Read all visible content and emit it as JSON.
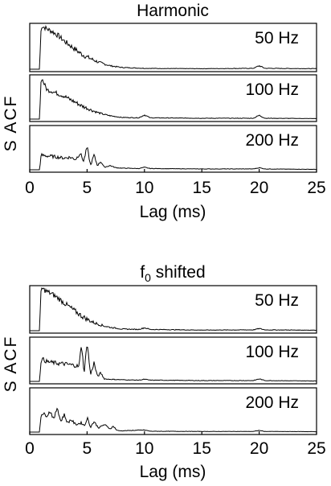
{
  "chart_data": [
    {
      "type": "line",
      "title": "Harmonic",
      "ylabel": "S ACF",
      "xlabel": "Lag (ms)",
      "xlim": [
        0,
        25
      ],
      "x_ticks": [
        "0",
        "5",
        "10",
        "15",
        "20",
        "25"
      ],
      "panels": [
        {
          "label": "50 Hz",
          "points": [
            [
              0.85,
              0.0
            ],
            [
              1.0,
              1.0
            ],
            [
              1.5,
              0.93
            ],
            [
              2.0,
              0.86
            ],
            [
              2.5,
              0.77
            ],
            [
              3.0,
              0.65
            ],
            [
              3.5,
              0.55
            ],
            [
              4.0,
              0.45
            ],
            [
              4.5,
              0.35
            ],
            [
              5.0,
              0.28
            ],
            [
              5.5,
              0.22
            ],
            [
              6.0,
              0.16
            ],
            [
              6.5,
              0.12
            ],
            [
              7.0,
              0.08
            ],
            [
              7.5,
              0.06
            ],
            [
              8.0,
              0.04
            ],
            [
              9.0,
              0.03
            ],
            [
              10.0,
              0.02
            ],
            [
              12.0,
              0.015
            ],
            [
              15.0,
              0.012
            ],
            [
              19.5,
              0.02
            ],
            [
              20.0,
              0.08
            ],
            [
              20.5,
              0.02
            ],
            [
              25.0,
              0.012
            ]
          ],
          "noise": 0.06
        },
        {
          "label": "100 Hz",
          "points": [
            [
              0.85,
              0.0
            ],
            [
              1.0,
              1.0
            ],
            [
              1.5,
              0.7
            ],
            [
              2.0,
              0.66
            ],
            [
              2.5,
              0.6
            ],
            [
              3.0,
              0.55
            ],
            [
              3.5,
              0.47
            ],
            [
              4.0,
              0.4
            ],
            [
              4.5,
              0.32
            ],
            [
              5.0,
              0.26
            ],
            [
              5.5,
              0.2
            ],
            [
              6.0,
              0.15
            ],
            [
              6.5,
              0.11
            ],
            [
              7.0,
              0.08
            ],
            [
              7.5,
              0.06
            ],
            [
              8.0,
              0.04
            ],
            [
              9.5,
              0.03
            ],
            [
              10.0,
              0.1
            ],
            [
              10.5,
              0.03
            ],
            [
              15.0,
              0.02
            ],
            [
              19.5,
              0.02
            ],
            [
              20.0,
              0.09
            ],
            [
              20.5,
              0.02
            ],
            [
              25.0,
              0.012
            ]
          ],
          "noise": 0.05
        },
        {
          "label": "200 Hz",
          "points": [
            [
              0.85,
              0.0
            ],
            [
              1.0,
              0.35
            ],
            [
              1.5,
              0.33
            ],
            [
              2.0,
              0.32
            ],
            [
              2.5,
              0.3
            ],
            [
              3.0,
              0.28
            ],
            [
              3.5,
              0.3
            ],
            [
              4.0,
              0.25
            ],
            [
              4.4,
              0.4
            ],
            [
              4.7,
              0.2
            ],
            [
              5.0,
              0.55
            ],
            [
              5.3,
              0.1
            ],
            [
              5.6,
              0.35
            ],
            [
              5.9,
              0.1
            ],
            [
              6.2,
              0.2
            ],
            [
              6.5,
              0.06
            ],
            [
              7.0,
              0.1
            ],
            [
              7.5,
              0.05
            ],
            [
              8.0,
              0.04
            ],
            [
              9.5,
              0.03
            ],
            [
              10.0,
              0.06
            ],
            [
              10.5,
              0.03
            ],
            [
              15.0,
              0.02
            ],
            [
              19.5,
              0.02
            ],
            [
              20.0,
              0.05
            ],
            [
              20.5,
              0.02
            ],
            [
              25.0,
              0.01
            ]
          ],
          "noise": 0.04
        }
      ]
    },
    {
      "type": "line",
      "title": "f0 shifted",
      "title_main": "f",
      "title_sub": "0",
      "title_rest": " shifted",
      "ylabel": "S ACF",
      "xlabel": "Lag (ms)",
      "xlim": [
        0,
        25
      ],
      "x_ticks": [
        "0",
        "5",
        "10",
        "15",
        "20",
        "25"
      ],
      "panels": [
        {
          "label": "50 Hz",
          "points": [
            [
              0.85,
              0.0
            ],
            [
              1.0,
              1.0
            ],
            [
              1.5,
              0.92
            ],
            [
              2.0,
              0.85
            ],
            [
              2.5,
              0.76
            ],
            [
              3.0,
              0.65
            ],
            [
              3.5,
              0.55
            ],
            [
              4.0,
              0.45
            ],
            [
              4.5,
              0.35
            ],
            [
              5.0,
              0.27
            ],
            [
              5.5,
              0.2
            ],
            [
              6.0,
              0.15
            ],
            [
              6.5,
              0.11
            ],
            [
              7.0,
              0.08
            ],
            [
              7.5,
              0.06
            ],
            [
              8.0,
              0.04
            ],
            [
              9.5,
              0.03
            ],
            [
              10.0,
              0.07
            ],
            [
              10.5,
              0.03
            ],
            [
              15.0,
              0.015
            ],
            [
              19.5,
              0.02
            ],
            [
              20.0,
              0.05
            ],
            [
              20.5,
              0.02
            ],
            [
              25.0,
              0.012
            ]
          ],
          "noise": 0.06
        },
        {
          "label": "100 Hz",
          "points": [
            [
              0.85,
              0.0
            ],
            [
              1.0,
              0.55
            ],
            [
              1.5,
              0.47
            ],
            [
              2.0,
              0.45
            ],
            [
              2.5,
              0.43
            ],
            [
              3.0,
              0.42
            ],
            [
              3.5,
              0.4
            ],
            [
              4.0,
              0.38
            ],
            [
              4.3,
              0.35
            ],
            [
              4.5,
              0.9
            ],
            [
              4.75,
              0.2
            ],
            [
              5.0,
              0.95
            ],
            [
              5.3,
              0.15
            ],
            [
              5.6,
              0.45
            ],
            [
              5.9,
              0.12
            ],
            [
              6.2,
              0.2
            ],
            [
              6.5,
              0.06
            ],
            [
              7.0,
              0.05
            ],
            [
              8.0,
              0.04
            ],
            [
              9.5,
              0.03
            ],
            [
              10.0,
              0.05
            ],
            [
              10.5,
              0.03
            ],
            [
              15.0,
              0.02
            ],
            [
              19.5,
              0.02
            ],
            [
              20.0,
              0.06
            ],
            [
              20.5,
              0.02
            ],
            [
              25.0,
              0.01
            ]
          ],
          "noise": 0.05
        },
        {
          "label": "200 Hz",
          "points": [
            [
              0.85,
              0.0
            ],
            [
              1.0,
              0.45
            ],
            [
              1.5,
              0.4
            ],
            [
              1.8,
              0.5
            ],
            [
              2.1,
              0.3
            ],
            [
              2.4,
              0.6
            ],
            [
              2.7,
              0.25
            ],
            [
              3.0,
              0.42
            ],
            [
              3.3,
              0.22
            ],
            [
              3.6,
              0.3
            ],
            [
              4.0,
              0.18
            ],
            [
              4.5,
              0.22
            ],
            [
              4.8,
              0.15
            ],
            [
              5.0,
              0.35
            ],
            [
              5.3,
              0.12
            ],
            [
              5.6,
              0.25
            ],
            [
              6.0,
              0.1
            ],
            [
              6.5,
              0.18
            ],
            [
              7.0,
              0.08
            ],
            [
              7.3,
              0.14
            ],
            [
              7.6,
              0.04
            ],
            [
              8.0,
              0.03
            ],
            [
              10.0,
              0.05
            ],
            [
              10.5,
              0.02
            ],
            [
              15.0,
              0.015
            ],
            [
              19.5,
              0.015
            ],
            [
              20.0,
              0.04
            ],
            [
              20.5,
              0.015
            ],
            [
              25.0,
              0.01
            ]
          ],
          "noise": 0.04
        }
      ]
    }
  ]
}
